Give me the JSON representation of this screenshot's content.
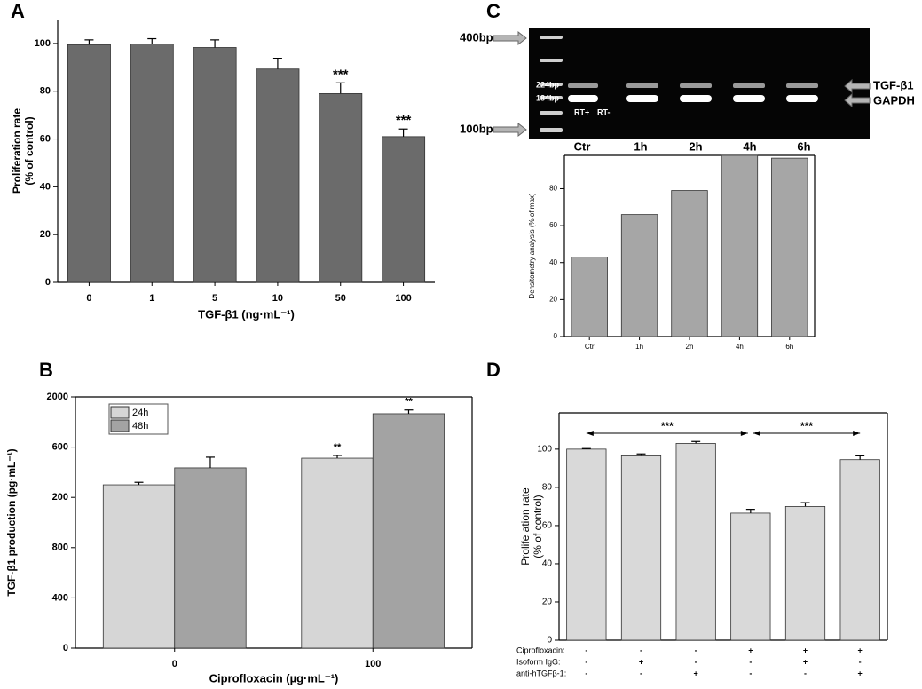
{
  "chart_data": [
    {
      "type": "bar",
      "panel": "A",
      "ylabel": [
        "Proliferation rate",
        "(% of control)"
      ],
      "xlabel": "TGF-β1 (ng·mL⁻¹)",
      "categories": [
        "0",
        "1",
        "5",
        "10",
        "50",
        "100"
      ],
      "values": [
        99.5,
        99.8,
        98.3,
        89.3,
        79,
        61
      ],
      "errors": [
        2,
        2.2,
        3.2,
        4.5,
        4.5,
        3.2
      ],
      "color": "#6b6b6b",
      "ylim": [
        0,
        110
      ],
      "yticks": [
        0,
        20,
        40,
        60,
        80,
        100
      ],
      "annotations": [
        {
          "text": "***",
          "x": "50"
        },
        {
          "text": "***",
          "x": "100"
        }
      ]
    },
    {
      "type": "bar",
      "panel": "B",
      "ylabel": [
        "TGF-β1 production (pg·mL⁻¹)"
      ],
      "xlabel": "Ciprofloxacin (µg·mL⁻¹)",
      "categories": [
        "0",
        "100"
      ],
      "series": [
        {
          "name": "24h",
          "color": "#d6d6d6",
          "values": [
            1300,
            1512
          ],
          "errors": [
            20,
            22
          ]
        },
        {
          "name": "48h",
          "color": "#a3a3a3",
          "values": [
            1435,
            1866
          ],
          "errors": [
            85,
            30
          ]
        }
      ],
      "legend": "upper left",
      "ylim": [
        0,
        2000
      ],
      "yticks": [
        0,
        400,
        800,
        {
          "value": 1200,
          "label": "200"
        },
        {
          "value": 1600,
          "label": "600"
        },
        2000
      ],
      "annotations": [
        {
          "text": "**",
          "x": "100",
          "series": "24h"
        },
        {
          "text": "**",
          "x": "100",
          "series": "48h"
        }
      ]
    },
    {
      "type": "bar",
      "panel": "C",
      "ylabel": [
        "Densitometry analysis (% of max)"
      ],
      "categories": [
        "Ctr",
        "1h",
        "2h",
        "4h",
        "6h"
      ],
      "values": [
        43,
        66,
        79,
        98,
        96.5
      ],
      "color": "#a6a6a6",
      "ylim": [
        0,
        98
      ],
      "yticks": [
        0,
        20,
        40,
        60,
        80
      ],
      "gel": {
        "markers": [
          "400bp",
          "100bp"
        ],
        "bands": [
          "224bp",
          "184bp"
        ],
        "lanes": [
          "RT+",
          "RT-"
        ],
        "targets": [
          "TGF-β1",
          "GAPDH"
        ],
        "lane_labels": [
          "Ctr",
          "1h",
          "2h",
          "4h",
          "6h"
        ]
      }
    },
    {
      "type": "bar",
      "panel": "D",
      "ylabel": [
        "Prolife ation rate",
        "(% of control)"
      ],
      "values": [
        100,
        96.5,
        103,
        66.5,
        70,
        94.5
      ],
      "errors": [
        0.3,
        1,
        1,
        2,
        2,
        2
      ],
      "color": "#d9d9d9",
      "ylim": [
        0,
        119
      ],
      "yticks": [
        0,
        20,
        40,
        60,
        80,
        100
      ],
      "conditions": [
        {
          "name": "Ciprofloxacin:",
          "signs": [
            "-",
            "-",
            "-",
            "+",
            "+",
            "+"
          ]
        },
        {
          "name": "Isoform IgG:",
          "signs": [
            "-",
            "+",
            "-",
            "-",
            "+",
            "-"
          ]
        },
        {
          "name": "anti-hTGFβ-1:",
          "signs": [
            "-",
            "-",
            "+",
            "-",
            "-",
            "+"
          ]
        }
      ],
      "annotations": [
        {
          "text": "***"
        },
        {
          "text": "***"
        }
      ]
    }
  ]
}
